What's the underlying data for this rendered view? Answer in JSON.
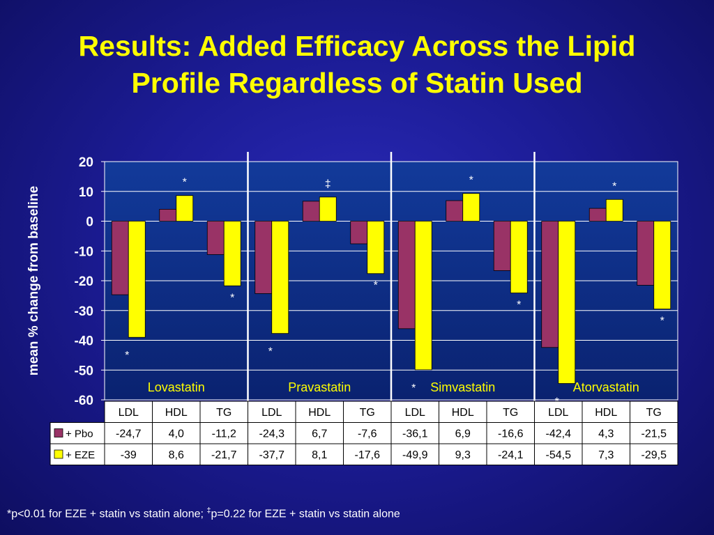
{
  "title": {
    "line1": "Results: Added  Efficacy Across the Lipid",
    "line2": "Profile Regardless of Statin Used"
  },
  "footnote": {
    "part1": "*p<0.01 for EZE + statin vs statin alone;  ",
    "dagger": "‡",
    "part2": "p=0.22 for EZE + statin vs statin alone"
  },
  "colors": {
    "pbo": "#993366",
    "eze": "#ffff00",
    "plot_bg": "#0f2d88",
    "title": "#ffff00"
  },
  "chart_data": {
    "type": "bar",
    "ylabel": "mean % change from baseline",
    "ylim": [
      -60,
      20
    ],
    "yticks": [
      20,
      10,
      0,
      -10,
      -20,
      -30,
      -40,
      -50,
      -60
    ],
    "grid": true,
    "groups": [
      "Lovastatin",
      "Pravastatin",
      "Simvastatin",
      "Atorvastatin"
    ],
    "categories": [
      "LDL",
      "HDL",
      "TG",
      "LDL",
      "HDL",
      "TG",
      "LDL",
      "HDL",
      "TG",
      "LDL",
      "HDL",
      "TG"
    ],
    "series": [
      {
        "name": "+ Pbo",
        "values": [
          -24.7,
          4.0,
          -11.2,
          -24.3,
          6.7,
          -7.6,
          -36.1,
          6.9,
          -16.6,
          -42.4,
          4.3,
          -21.5
        ]
      },
      {
        "name": "+ EZE",
        "values": [
          -39,
          8.6,
          -21.7,
          -37.7,
          8.1,
          -17.6,
          -49.9,
          9.3,
          -24.1,
          -54.5,
          7.3,
          -29.5
        ]
      }
    ],
    "table_values": {
      "+ Pbo": [
        "-24,7",
        "4,0",
        "-11,2",
        "-24,3",
        "6,7",
        "-7,6",
        "-36,1",
        "6,9",
        "-16,6",
        "-42,4",
        "4,3",
        "-21,5"
      ],
      "+ EZE": [
        "-39",
        "8,6",
        "-21,7",
        "-37,7",
        "8,1",
        "-17,6",
        "-49,9",
        "9,3",
        "-24,1",
        "-54,5",
        "7,3",
        "-29,5"
      ]
    },
    "significance": [
      "*",
      "*",
      "*",
      "*",
      "‡",
      "*",
      "*",
      "*",
      "*",
      "*",
      "*",
      "*"
    ]
  }
}
